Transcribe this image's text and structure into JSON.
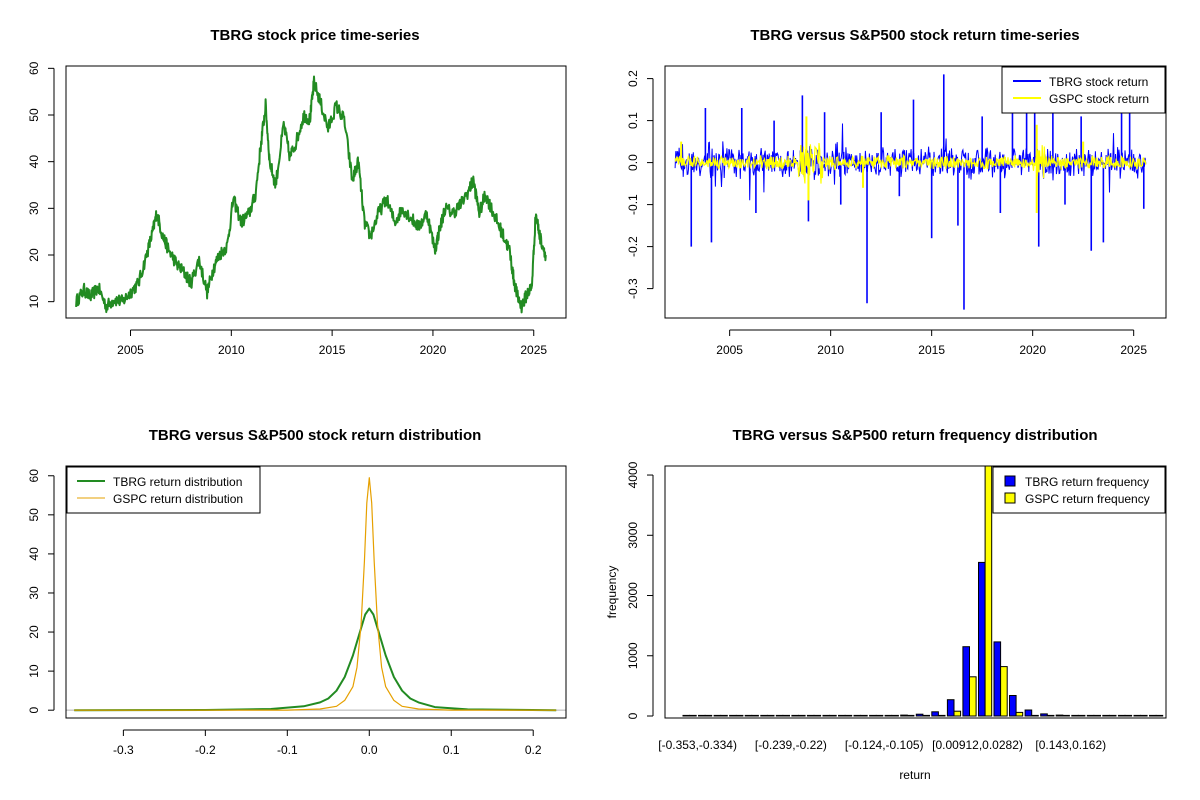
{
  "chart_data": [
    {
      "id": "price",
      "type": "line",
      "title": "TBRG stock price time-series",
      "xlabel": "",
      "ylabel": "",
      "xlim": [
        2001.8,
        2026.6
      ],
      "ylim": [
        6.5,
        60.5
      ],
      "xticks": [
        2005,
        2010,
        2015,
        2020,
        2025
      ],
      "xtick_labels": [
        "2005",
        "2010",
        "2015",
        "2020",
        "2025"
      ],
      "yticks": [
        10,
        20,
        30,
        40,
        50,
        60
      ],
      "ytick_labels": [
        "10",
        "20",
        "30",
        "40",
        "50",
        "60"
      ],
      "legend": null,
      "series": [
        {
          "name": "TBRG price",
          "color": "#228b22",
          "x": [
            2002.3,
            2002.7,
            2003.0,
            2003.4,
            2003.8,
            2004.2,
            2004.6,
            2005.0,
            2005.4,
            2005.8,
            2006.1,
            2006.3,
            2006.6,
            2006.9,
            2007.3,
            2007.7,
            2008.0,
            2008.4,
            2008.8,
            2009.1,
            2009.4,
            2009.8,
            2010.1,
            2010.5,
            2010.9,
            2011.2,
            2011.5,
            2011.7,
            2011.9,
            2012.2,
            2012.6,
            2012.9,
            2013.2,
            2013.6,
            2013.9,
            2014.1,
            2014.4,
            2014.8,
            2015.2,
            2015.6,
            2016.0,
            2016.3,
            2016.6,
            2016.9,
            2017.3,
            2017.7,
            2018.1,
            2018.5,
            2018.9,
            2019.3,
            2019.7,
            2020.1,
            2020.3,
            2020.6,
            2021.0,
            2021.4,
            2021.8,
            2022.0,
            2022.3,
            2022.6,
            2022.9,
            2023.2,
            2023.5,
            2023.8,
            2024.0,
            2024.2,
            2024.4,
            2024.7,
            2024.9,
            2025.1,
            2025.3,
            2025.6
          ],
          "y": [
            10,
            12.5,
            11,
            13,
            9,
            10.5,
            10,
            12,
            14,
            20,
            25,
            29,
            24,
            21,
            18,
            16,
            14,
            19,
            12,
            17,
            20,
            22,
            32,
            27,
            29,
            33,
            45,
            52,
            40,
            35,
            48,
            41,
            44,
            50,
            49,
            57,
            53,
            47,
            52,
            49,
            36,
            40,
            27,
            24,
            29,
            32,
            27,
            30,
            28,
            26,
            29,
            21,
            25,
            30,
            29,
            31,
            34,
            36,
            29,
            33,
            30,
            27,
            24,
            21,
            15,
            11,
            9,
            12,
            13,
            29,
            24,
            20
          ]
        }
      ]
    },
    {
      "id": "returns",
      "type": "line",
      "title": "TBRG versus S&P500 stock return time-series",
      "xlabel": "",
      "ylabel": "",
      "xlim": [
        2001.8,
        2026.6
      ],
      "ylim": [
        -0.37,
        0.23
      ],
      "xticks": [
        2005,
        2010,
        2015,
        2020,
        2025
      ],
      "xtick_labels": [
        "2005",
        "2010",
        "2015",
        "2020",
        "2025"
      ],
      "yticks": [
        -0.3,
        -0.2,
        -0.1,
        0.0,
        0.1,
        0.2
      ],
      "ytick_labels": [
        "-0.3",
        "-0.2",
        "-0.1",
        "0.0",
        "0.1",
        "0.2"
      ],
      "legend": {
        "position": "top-right",
        "entries": [
          "TBRG stock return",
          "GSPC stock return"
        ]
      },
      "series": [
        {
          "name": "TBRG stock return",
          "color": "#0000ff",
          "spikes": [
            {
              "x": 2003.1,
              "y": -0.2
            },
            {
              "x": 2003.8,
              "y": 0.13
            },
            {
              "x": 2004.1,
              "y": -0.19
            },
            {
              "x": 2005.6,
              "y": 0.13
            },
            {
              "x": 2006.3,
              "y": -0.12
            },
            {
              "x": 2007.2,
              "y": 0.1
            },
            {
              "x": 2008.6,
              "y": 0.16
            },
            {
              "x": 2008.9,
              "y": -0.14
            },
            {
              "x": 2009.7,
              "y": 0.12
            },
            {
              "x": 2010.5,
              "y": -0.1
            },
            {
              "x": 2011.8,
              "y": -0.335
            },
            {
              "x": 2012.5,
              "y": 0.12
            },
            {
              "x": 2013.4,
              "y": -0.08
            },
            {
              "x": 2014.1,
              "y": 0.15
            },
            {
              "x": 2015.0,
              "y": -0.18
            },
            {
              "x": 2015.6,
              "y": 0.21
            },
            {
              "x": 2016.3,
              "y": -0.15
            },
            {
              "x": 2016.6,
              "y": -0.35
            },
            {
              "x": 2017.5,
              "y": 0.11
            },
            {
              "x": 2018.4,
              "y": -0.12
            },
            {
              "x": 2019.0,
              "y": 0.14
            },
            {
              "x": 2019.7,
              "y": 0.2
            },
            {
              "x": 2020.1,
              "y": 0.13
            },
            {
              "x": 2020.3,
              "y": -0.2
            },
            {
              "x": 2021.0,
              "y": 0.15
            },
            {
              "x": 2021.6,
              "y": -0.1
            },
            {
              "x": 2022.4,
              "y": 0.11
            },
            {
              "x": 2022.9,
              "y": -0.21
            },
            {
              "x": 2023.5,
              "y": -0.19
            },
            {
              "x": 2024.4,
              "y": 0.15
            },
            {
              "x": 2024.8,
              "y": 0.12
            },
            {
              "x": 2025.5,
              "y": -0.11
            }
          ]
        },
        {
          "name": "GSPC stock return",
          "color": "#ffff00",
          "spikes": [
            {
              "x": 2008.8,
              "y": 0.11
            },
            {
              "x": 2008.9,
              "y": -0.09
            },
            {
              "x": 2020.2,
              "y": 0.09
            },
            {
              "x": 2020.2,
              "y": -0.12
            },
            {
              "x": 2002.6,
              "y": 0.05
            },
            {
              "x": 2011.6,
              "y": -0.06
            },
            {
              "x": 2022.5,
              "y": 0.05
            }
          ]
        }
      ]
    },
    {
      "id": "density",
      "type": "line",
      "title": "TBRG versus S&P500 stock return distribution",
      "xlabel": "",
      "ylabel": "",
      "xlim": [
        -0.37,
        0.24
      ],
      "ylim": [
        -2,
        62.5
      ],
      "xticks": [
        -0.3,
        -0.2,
        -0.1,
        0.0,
        0.1,
        0.2
      ],
      "xtick_labels": [
        "-0.3",
        "-0.2",
        "-0.1",
        "0.0",
        "0.1",
        "0.2"
      ],
      "yticks": [
        0,
        10,
        20,
        30,
        40,
        50,
        60
      ],
      "ytick_labels": [
        "0",
        "10",
        "20",
        "30",
        "40",
        "50",
        "60"
      ],
      "baseline": 0,
      "legend": {
        "position": "top-left",
        "entries": [
          "TBRG return distribution",
          "GSPC return distribution"
        ]
      },
      "series": [
        {
          "name": "TBRG return distribution",
          "color": "#228b22",
          "x": [
            -0.36,
            -0.2,
            -0.12,
            -0.08,
            -0.06,
            -0.05,
            -0.04,
            -0.03,
            -0.02,
            -0.01,
            -0.005,
            0.0,
            0.005,
            0.01,
            0.02,
            0.03,
            0.04,
            0.05,
            0.06,
            0.08,
            0.12,
            0.228
          ],
          "y": [
            0,
            0.05,
            0.3,
            1,
            2,
            3,
            5,
            8.5,
            14,
            21,
            24.5,
            26,
            24.5,
            21,
            14,
            8.5,
            5,
            3,
            2,
            0.8,
            0.2,
            0
          ]
        },
        {
          "name": "GSPC return distribution",
          "color": "#e6a000",
          "x": [
            -0.36,
            -0.1,
            -0.06,
            -0.04,
            -0.03,
            -0.02,
            -0.015,
            -0.01,
            -0.006,
            -0.003,
            0.0,
            0.003,
            0.006,
            0.01,
            0.015,
            0.02,
            0.03,
            0.04,
            0.06,
            0.1,
            0.228
          ],
          "y": [
            0,
            0.02,
            0.3,
            1,
            2.5,
            6,
            11,
            22,
            38,
            53,
            59.5,
            53,
            38,
            22,
            11,
            6,
            2.5,
            1,
            0.3,
            0.02,
            0
          ]
        }
      ]
    },
    {
      "id": "histogram",
      "type": "bar",
      "title": "TBRG versus S&P500 return frequency distribution",
      "xlabel": "return",
      "ylabel": "frequency",
      "ylim": [
        0,
        4150
      ],
      "yticks": [
        0,
        1000,
        2000,
        3000,
        4000
      ],
      "ytick_labels": [
        "0",
        "1000",
        "2000",
        "3000",
        "4000"
      ],
      "xtick_labels": [
        {
          "bin": 0,
          "label": "[-0.353,-0.334)"
        },
        {
          "bin": 6,
          "label": "[-0.239,-0.22)"
        },
        {
          "bin": 12,
          "label": "[-0.124,-0.105)"
        },
        {
          "bin": 18,
          "label": "[0.00912,0.0282)"
        },
        {
          "bin": 24,
          "label": "[0.143,0.162)"
        }
      ],
      "legend": {
        "position": "top-right",
        "entries": [
          "TBRG return frequency",
          "GSPC return frequency"
        ]
      },
      "series": [
        {
          "name": "TBRG return frequency",
          "color": "#0000ff",
          "values": [
            2,
            0,
            0,
            0,
            0,
            0,
            1,
            0,
            1,
            1,
            2,
            3,
            5,
            8,
            15,
            30,
            70,
            270,
            1150,
            2550,
            1230,
            340,
            100,
            35,
            15,
            8,
            3,
            2,
            2,
            1,
            1
          ]
        },
        {
          "name": "GSPC return frequency",
          "color": "#ffff00",
          "values": [
            0,
            0,
            0,
            0,
            0,
            0,
            0,
            0,
            0,
            0,
            0,
            0,
            0,
            0,
            0,
            0,
            5,
            80,
            650,
            4200,
            820,
            60,
            8,
            1,
            0,
            0,
            0,
            0,
            0,
            0,
            0
          ]
        }
      ]
    }
  ]
}
